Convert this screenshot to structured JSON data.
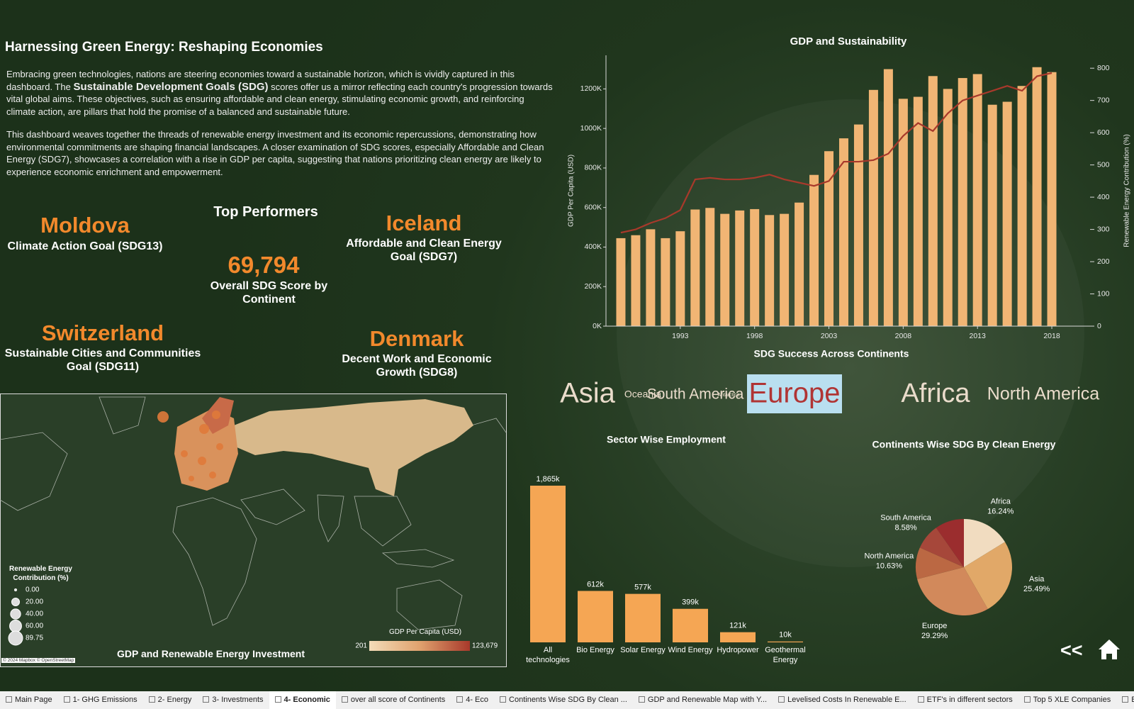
{
  "header": {
    "title": "Harnessing Green Energy: Reshaping Economies",
    "intro": {
      "before": "Embracing green technologies, nations are steering economies toward a sustainable horizon, which is vividly captured in this dashboard. The ",
      "bold": "Sustainable Development Goals (SDG)",
      "after": " scores offer us a mirror reflecting each country's progression towards vital global aims. These objectives, such as ensuring affordable and clean energy, stimulating economic growth, and reinforcing climate action, are pillars that hold the promise of a balanced and sustainable future."
    },
    "paragraph2": "This dashboard weaves together the threads of renewable energy investment and its economic repercussions, demonstrating how environmental commitments are shaping financial landscapes. A closer examination of SDG scores, especially Affordable and Clean Energy (SDG7), showcases a correlation with a rise in GDP per capita, suggesting that nations prioritizing clean energy are likely to experience economic enrichment and empowerment."
  },
  "top_performers": {
    "title": "Top Performers",
    "kpi": {
      "value": "69,794",
      "label": "Overall SDG Score by Continent"
    },
    "items": [
      {
        "country": "Moldova",
        "goal": "Climate Action Goal (SDG13)"
      },
      {
        "country": "Iceland",
        "goal": "Affordable and Clean Energy Goal (SDG7)"
      },
      {
        "country": "Switzerland",
        "goal": "Sustainable Cities and Communities Goal (SDG11)"
      },
      {
        "country": "Denmark",
        "goal": "Decent Work and Economic Growth (SDG8)"
      }
    ]
  },
  "chart_data": [
    {
      "type": "bar_line",
      "title": "GDP and Sustainability",
      "ylabel": "GDP Per Capita (USD)",
      "y2label": "Renewable Energy Contribution (%)",
      "x": [
        1989,
        1990,
        1991,
        1992,
        1993,
        1994,
        1995,
        1996,
        1997,
        1998,
        1999,
        2000,
        2001,
        2002,
        2003,
        2004,
        2005,
        2006,
        2007,
        2008,
        2009,
        2010,
        2011,
        2012,
        2013,
        2014,
        2015,
        2016,
        2017,
        2018
      ],
      "xlim": [
        1988,
        2019
      ],
      "xticks": [
        1993,
        1998,
        2003,
        2008,
        2013,
        2018
      ],
      "ylim": [
        0,
        1370000
      ],
      "yticks": [
        {
          "value": 0,
          "label": "0K"
        },
        {
          "value": 200000,
          "label": "200K"
        },
        {
          "value": 400000,
          "label": "400K"
        },
        {
          "value": 600000,
          "label": "600K"
        },
        {
          "value": 800000,
          "label": "800K"
        },
        {
          "value": 1000000,
          "label": "1000K"
        },
        {
          "value": 1200000,
          "label": "1200K"
        }
      ],
      "y2lim": [
        0,
        840
      ],
      "y2ticks": [
        0,
        100,
        200,
        300,
        400,
        500,
        600,
        700,
        800
      ],
      "series": [
        {
          "type": "bar",
          "color": "#f1b574",
          "values": [
            445000,
            460000,
            490000,
            445000,
            480000,
            590000,
            598000,
            568000,
            585000,
            592000,
            562000,
            568000,
            625000,
            765000,
            885000,
            950000,
            1020000,
            1195000,
            1300000,
            1150000,
            1160000,
            1265000,
            1200000,
            1255000,
            1275000,
            1120000,
            1135000,
            1215000,
            1310000,
            1285000
          ]
        },
        {
          "type": "line",
          "axis": "y2",
          "color": "#a8392b",
          "values": [
            290,
            300,
            320,
            335,
            360,
            455,
            460,
            455,
            455,
            460,
            470,
            455,
            445,
            435,
            450,
            510,
            510,
            515,
            535,
            590,
            630,
            605,
            660,
            700,
            715,
            730,
            745,
            730,
            775,
            785
          ]
        }
      ]
    },
    {
      "type": "bar",
      "title": "Sector Wise Employment",
      "categories": [
        "All technologies",
        "Bio Energy",
        "Solar Energy",
        "Wind Energy",
        "Hydropower",
        "Geothermal Energy"
      ],
      "values": [
        1865,
        612,
        577,
        399,
        121,
        10
      ],
      "value_labels": [
        "1,865k",
        "612k",
        "577k",
        "399k",
        "121k",
        "10k"
      ],
      "color": "#f5a654"
    },
    {
      "type": "pie",
      "title": "Continents Wise SDG By Clean Energy",
      "categories": [
        "Africa",
        "Asia",
        "Europe",
        "North America",
        "South America",
        null
      ],
      "values": [
        16.24,
        25.49,
        29.29,
        10.63,
        8.58,
        9.77
      ],
      "value_labels": [
        "16.24%",
        "25.49%",
        "29.29%",
        "10.63%",
        "8.58%",
        null
      ],
      "colors": [
        "#f1dcc0",
        "#e1a868",
        "#d2895b",
        "#bb6843",
        "#a6473a",
        "#9b2d2e"
      ]
    }
  ],
  "word_cloud": {
    "title": "SDG Success Across Continents",
    "words": [
      {
        "text": "Asia"
      },
      {
        "text": "Oceania"
      },
      {
        "text": "South America"
      },
      {
        "text": "Antarctica"
      },
      {
        "text": "Europe",
        "highlight": true
      },
      {
        "text": "Africa"
      },
      {
        "text": "North America"
      }
    ]
  },
  "map": {
    "title": "GDP and Renewable Energy Investment",
    "attribution": "© 2024 Mapbox © OpenStreetMap",
    "size_legend": {
      "title": "Renewable Energy Contribution (%)",
      "values": [
        {
          "value": 0,
          "label": "0.00"
        },
        {
          "value": 20,
          "label": "20.00"
        },
        {
          "value": 40,
          "label": "40.00"
        },
        {
          "value": 60,
          "label": "60.00"
        },
        {
          "value": 89.75,
          "label": "89.75"
        }
      ]
    },
    "color_legend": {
      "title": "GDP Per Capita (USD)",
      "min": 201,
      "max": {
        "value": 123679,
        "label": "123,679"
      }
    }
  },
  "navigation": {
    "back": "<<"
  },
  "tabs": [
    {
      "label": "Main Page"
    },
    {
      "label": "1- GHG Emissions"
    },
    {
      "label": "2- Energy"
    },
    {
      "label": "3- Investments"
    },
    {
      "label": "4- Economic",
      "active": true
    },
    {
      "label": "over all score of Continents"
    },
    {
      "label": "4- Eco"
    },
    {
      "label": "Continents Wise SDG By Clean ..."
    },
    {
      "label": "GDP and Renewable Map with Y..."
    },
    {
      "label": "Levelised Costs In Renewable E..."
    },
    {
      "label": "ETF's in different sectors"
    },
    {
      "label": "Top 5 XLE Companies"
    },
    {
      "label": "Exchanged Traded fund:"
    }
  ]
}
